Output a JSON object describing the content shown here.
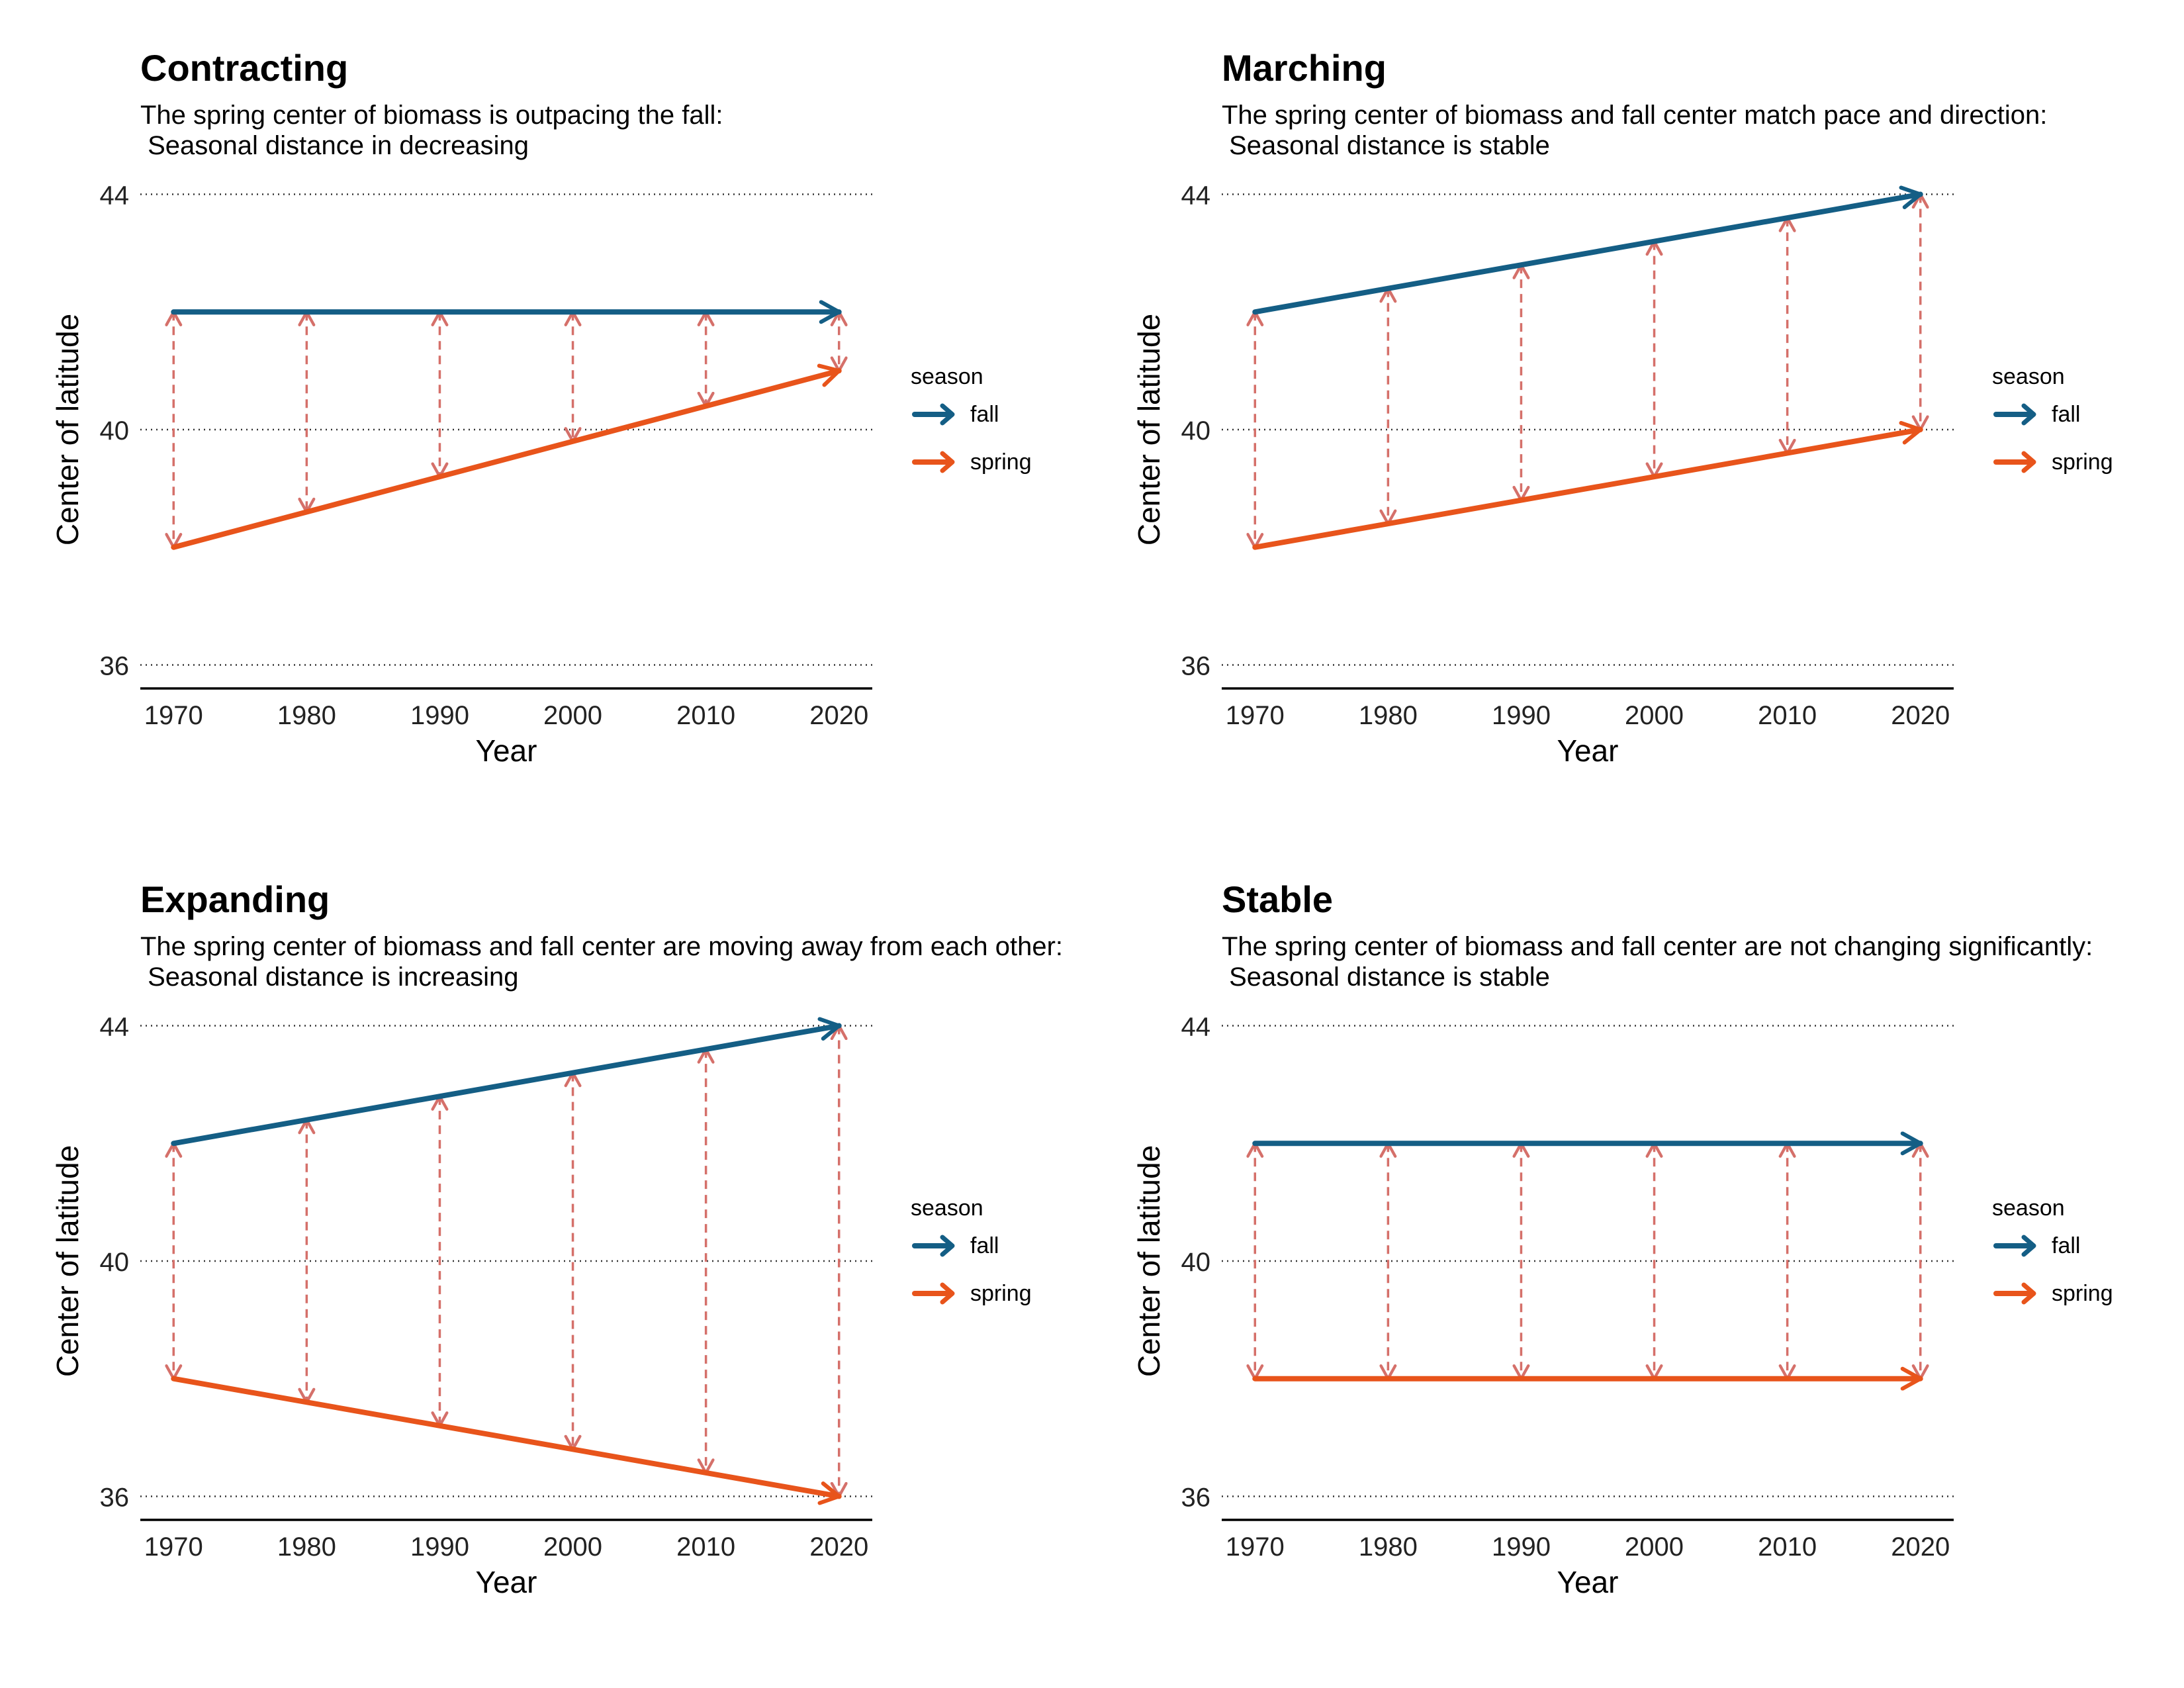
{
  "colors": {
    "fall": "#145e85",
    "spring": "#e8541b",
    "distance": "#d5706a"
  },
  "chart_data": [
    {
      "type": "line",
      "title": "Contracting",
      "subtitle": "The spring center of biomass is outpacing the fall:\n Seasonal distance in decreasing",
      "xlabel": "Year",
      "ylabel": "Center of latitude",
      "x_ticks": [
        1970,
        1980,
        1990,
        2000,
        2010,
        2020
      ],
      "y_ticks": [
        36,
        40,
        44
      ],
      "xlim": [
        1967.5,
        2022.5
      ],
      "ylim": [
        35.6,
        44.4
      ],
      "grid": "horizontal dotted",
      "legend": {
        "title": "season",
        "placement": "right"
      },
      "x": [
        1970,
        1980,
        1990,
        2000,
        2010,
        2020
      ],
      "series": [
        {
          "name": "fall",
          "values": [
            42,
            42,
            42,
            42,
            42,
            42
          ]
        },
        {
          "name": "spring",
          "values": [
            38,
            38.6,
            39.2,
            39.8,
            40.4,
            41
          ]
        }
      ]
    },
    {
      "type": "line",
      "title": "Marching",
      "subtitle": "The spring center of biomass and fall center match pace and direction:\n Seasonal distance is stable",
      "xlabel": "Year",
      "ylabel": "Center of latitude",
      "x_ticks": [
        1970,
        1980,
        1990,
        2000,
        2010,
        2020
      ],
      "y_ticks": [
        36,
        40,
        44
      ],
      "xlim": [
        1967.5,
        2022.5
      ],
      "ylim": [
        35.6,
        44.4
      ],
      "grid": "horizontal dotted",
      "legend": {
        "title": "season",
        "placement": "right"
      },
      "x": [
        1970,
        1980,
        1990,
        2000,
        2010,
        2020
      ],
      "series": [
        {
          "name": "fall",
          "values": [
            42,
            42.4,
            42.8,
            43.2,
            43.6,
            44
          ]
        },
        {
          "name": "spring",
          "values": [
            38,
            38.4,
            38.8,
            39.2,
            39.6,
            40
          ]
        }
      ]
    },
    {
      "type": "line",
      "title": "Expanding",
      "subtitle": "The spring center of biomass and fall center are moving away from each other:\n Seasonal distance is increasing",
      "xlabel": "Year",
      "ylabel": "Center of latitude",
      "x_ticks": [
        1970,
        1980,
        1990,
        2000,
        2010,
        2020
      ],
      "y_ticks": [
        36,
        40,
        44
      ],
      "xlim": [
        1967.5,
        2022.5
      ],
      "ylim": [
        35.6,
        44.4
      ],
      "grid": "horizontal dotted",
      "legend": {
        "title": "season",
        "placement": "right"
      },
      "x": [
        1970,
        1980,
        1990,
        2000,
        2010,
        2020
      ],
      "series": [
        {
          "name": "fall",
          "values": [
            42,
            42.4,
            42.8,
            43.2,
            43.6,
            44
          ]
        },
        {
          "name": "spring",
          "values": [
            38,
            37.6,
            37.2,
            36.8,
            36.4,
            36
          ]
        }
      ]
    },
    {
      "type": "line",
      "title": "Stable",
      "subtitle": "The spring center of biomass and fall center are not changing significantly:\n Seasonal distance is stable",
      "xlabel": "Year",
      "ylabel": "Center of latitude",
      "x_ticks": [
        1970,
        1980,
        1990,
        2000,
        2010,
        2020
      ],
      "y_ticks": [
        36,
        40,
        44
      ],
      "xlim": [
        1967.5,
        2022.5
      ],
      "ylim": [
        35.6,
        44.4
      ],
      "grid": "horizontal dotted",
      "legend": {
        "title": "season",
        "placement": "right"
      },
      "x": [
        1970,
        1980,
        1990,
        2000,
        2010,
        2020
      ],
      "series": [
        {
          "name": "fall",
          "values": [
            42,
            42,
            42,
            42,
            42,
            42
          ]
        },
        {
          "name": "spring",
          "values": [
            38,
            38,
            38,
            38,
            38,
            38
          ]
        }
      ]
    }
  ]
}
